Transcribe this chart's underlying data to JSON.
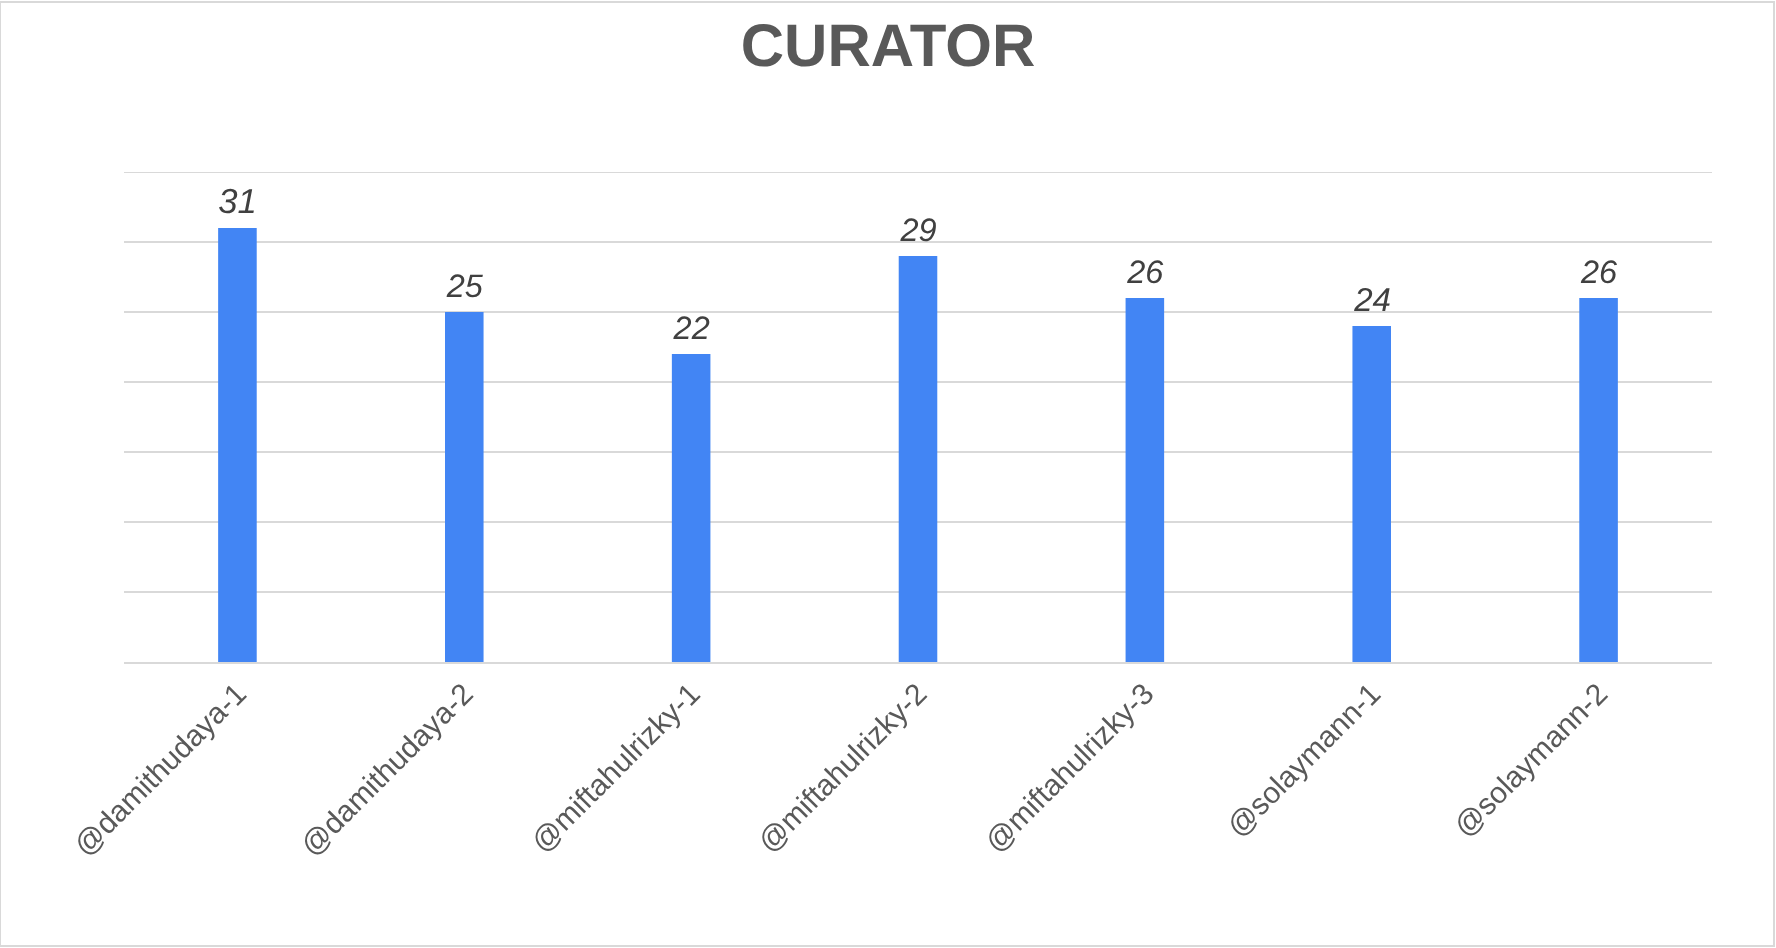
{
  "chart_data": {
    "type": "bar",
    "title": "CURATOR",
    "categories": [
      "@damithudaya-1",
      "@damithudaya-2",
      "@miftahulrizky-1",
      "@miftahulrizky-2",
      "@miftahulrizky-3",
      "@solaymann-1",
      "@solaymann-2"
    ],
    "values": [
      31,
      25,
      22,
      29,
      26,
      24,
      26
    ],
    "color": "#4285f4",
    "ylim": [
      0,
      35
    ],
    "yticks": [
      {
        "value": 0,
        "label": null
      },
      {
        "value": 5,
        "label": null
      },
      {
        "value": 10,
        "label": null
      },
      {
        "value": 15,
        "label": null
      },
      {
        "value": 20,
        "label": null
      },
      {
        "value": 25,
        "label": null
      },
      {
        "value": 30,
        "label": null
      },
      {
        "value": 35,
        "label": null
      }
    ],
    "tick_labels": "x",
    "grid": "y",
    "data_labels": true,
    "legend": false
  }
}
